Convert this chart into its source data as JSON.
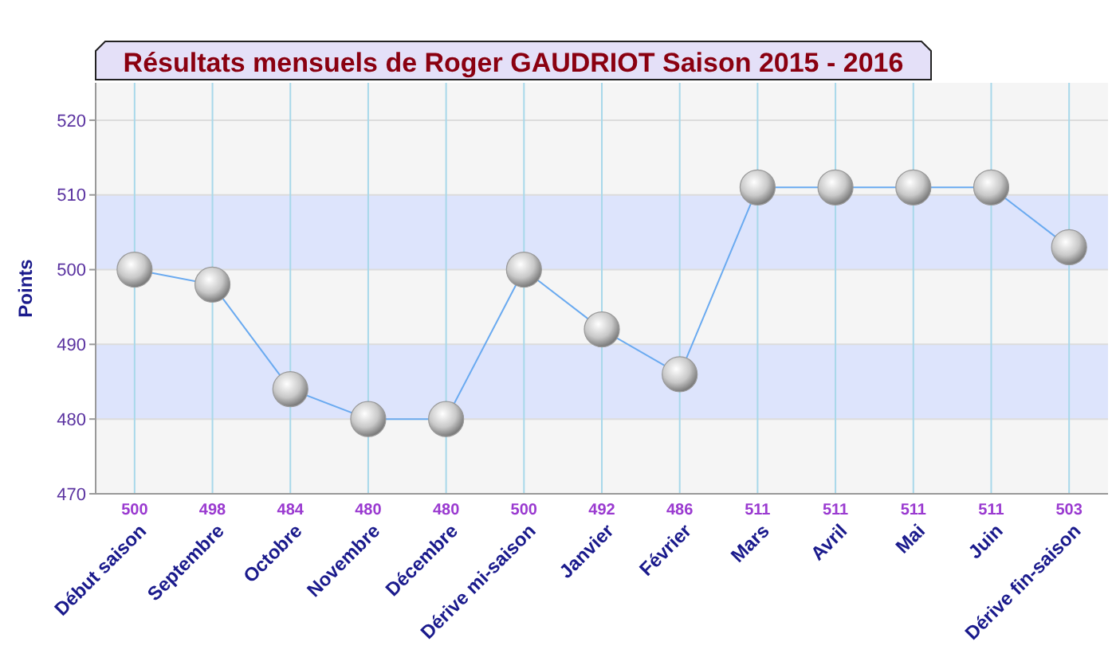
{
  "chart_data": {
    "type": "line",
    "title": "Résultats mensuels de Roger GAUDRIOT Saison 2015 - 2016",
    "ylabel": "Points",
    "categories": [
      "Début saison",
      "Septembre",
      "Octobre",
      "Novembre",
      "Décembre",
      "Dérive mi-saison",
      "Janvier",
      "Février",
      "Mars",
      "Avril",
      "Mai",
      "Juin",
      "Dérive fin-saison"
    ],
    "series": [
      {
        "color": "#6aaaf0",
        "values": [
          500,
          498,
          484,
          480,
          480,
          500,
          492,
          486,
          511,
          511,
          511,
          511,
          503
        ]
      }
    ],
    "ylim": [
      470,
      525
    ],
    "yticks": [
      470,
      480,
      490,
      500,
      510,
      520
    ],
    "bands": [
      {
        "axis": "y",
        "from": 480,
        "to": 490,
        "color": "#dde4fc"
      },
      {
        "axis": "y",
        "from": 500,
        "to": 510,
        "color": "#dde4fc"
      }
    ],
    "grid": true,
    "marker": "circle",
    "line_style": "solid",
    "data_labels": true
  }
}
